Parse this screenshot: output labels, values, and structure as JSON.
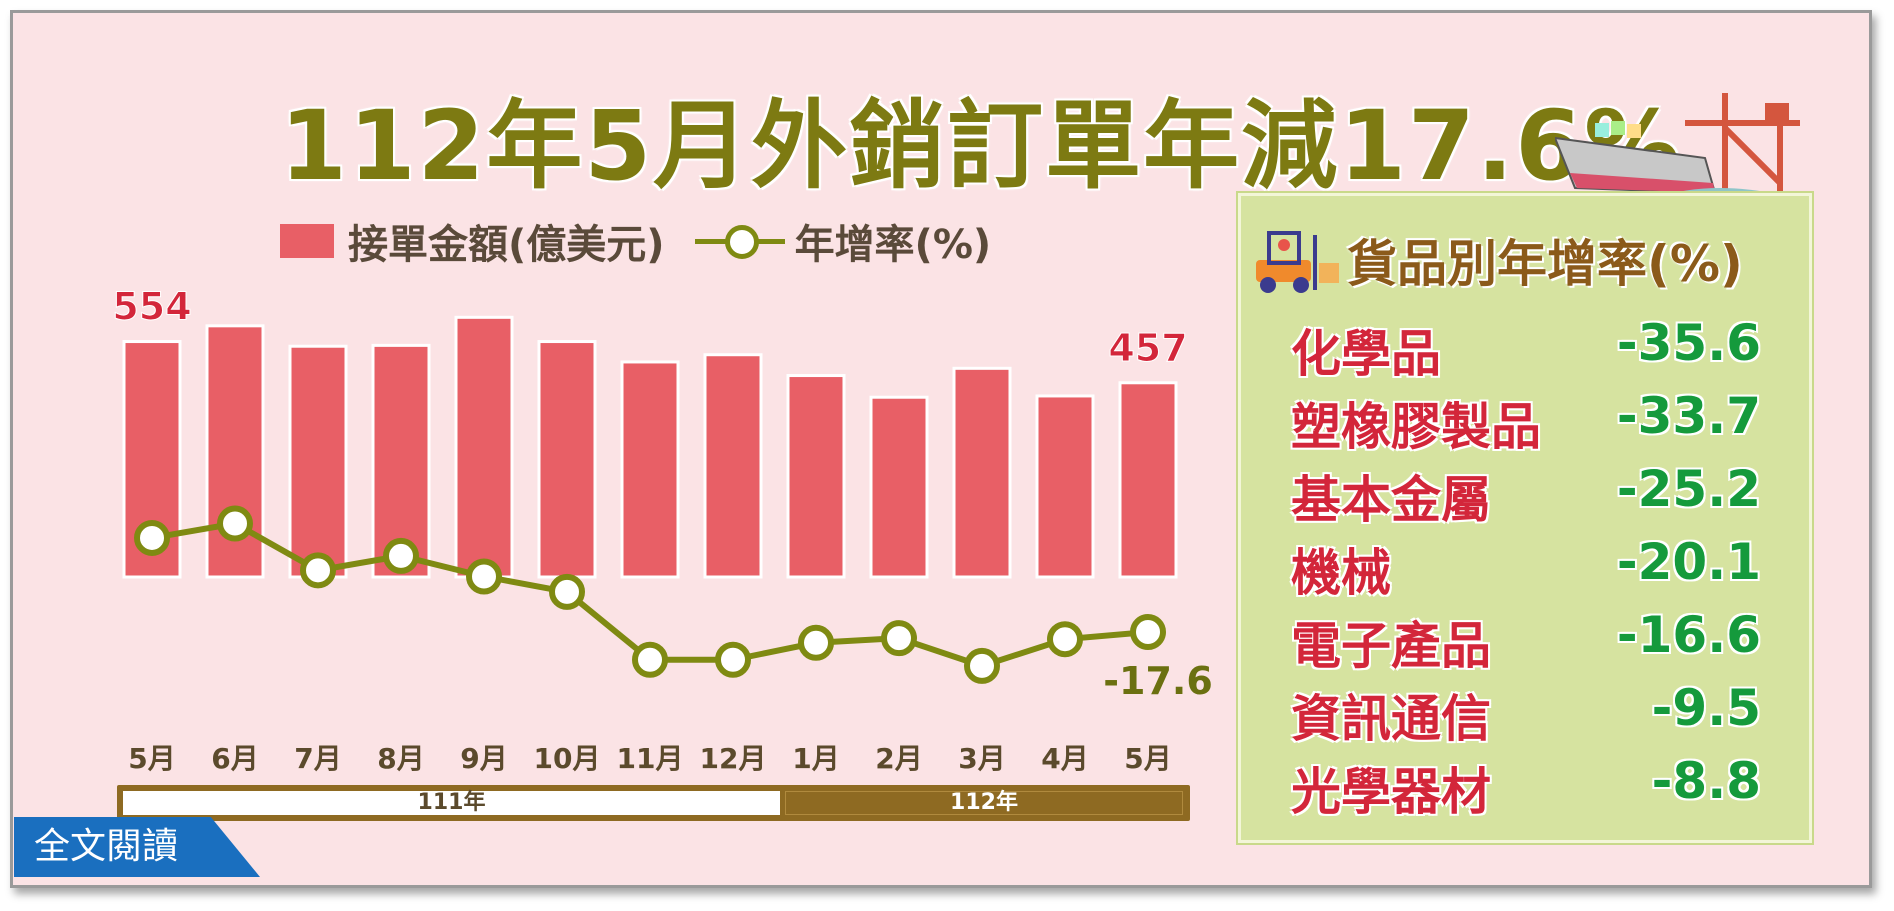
{
  "title": "112年5月外銷訂單年減17.6%",
  "legend": {
    "bar": "接單金額(億美元)",
    "line": "年增率(%)"
  },
  "chart_data": {
    "type": "bar+line",
    "title": "112年5月外銷訂單年減17.6%",
    "categories": [
      "5月",
      "6月",
      "7月",
      "8月",
      "9月",
      "10月",
      "11月",
      "12月",
      "1月",
      "2月",
      "3月",
      "4月",
      "5月"
    ],
    "year_groups": [
      {
        "label": "111年",
        "months": 8
      },
      {
        "label": "112年",
        "months": 5
      }
    ],
    "series": [
      {
        "name": "接單金額(億美元)",
        "type": "bar",
        "color": "#e85f66",
        "values": [
          554,
          591,
          543,
          545,
          611,
          554,
          506,
          523,
          474,
          423,
          491,
          426,
          457
        ],
        "data_labels": {
          "0": "554",
          "12": "457"
        }
      },
      {
        "name": "年增率(%)",
        "type": "line",
        "color": "#7f8a12",
        "values": [
          0.7,
          3.5,
          -5.6,
          -2.8,
          -6.8,
          -9.8,
          -23.0,
          -23.0,
          -19.7,
          -18.8,
          -24.2,
          -19.0,
          -17.6
        ],
        "data_labels": {
          "12": "-17.6"
        }
      }
    ],
    "grid": false,
    "legend_placement": "top"
  },
  "panel": {
    "title": "貨品別年增率(%)",
    "rows": [
      {
        "label": "化學品",
        "value": "-35.6"
      },
      {
        "label": "塑橡膠製品",
        "value": "-33.7"
      },
      {
        "label": "基本金屬",
        "value": "-25.2"
      },
      {
        "label": "機械",
        "value": "-20.1"
      },
      {
        "label": "電子產品",
        "value": "-16.6"
      },
      {
        "label": "資訊通信",
        "value": "-9.5"
      },
      {
        "label": "光學器材",
        "value": "-8.8"
      }
    ]
  },
  "read_button": "全文閱讀",
  "colors": {
    "background": "#fbe3e5",
    "title": "#7d7a12",
    "bar": "#e85f66",
    "line": "#7f8a12",
    "panel": "#d6e3a0",
    "negative": "#159a3c",
    "category": "#d3263a",
    "button": "#1a6fbf"
  }
}
